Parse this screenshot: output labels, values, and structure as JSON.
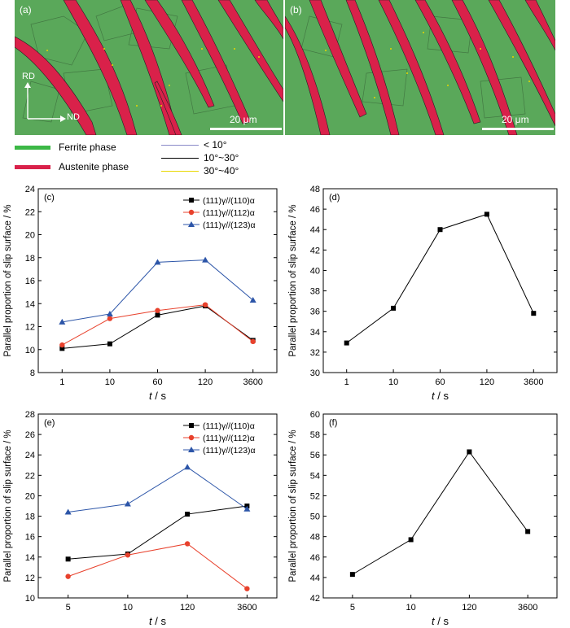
{
  "micrographs": [
    {
      "label": "(a)",
      "scalebar": "20 μm",
      "rd": "RD",
      "nd": "ND"
    },
    {
      "label": "(b)",
      "scalebar": "20 μm"
    }
  ],
  "phase_legend": [
    {
      "label": "Ferrite phase",
      "color": "#3cb846"
    },
    {
      "label": "Austenite phase",
      "color": "#d9214a"
    }
  ],
  "boundary_legend": [
    {
      "label": "< 10°",
      "color": "#8a8ac8"
    },
    {
      "label": "10°~30°",
      "color": "#000000"
    },
    {
      "label": "30°~40°",
      "color": "#e8d800"
    }
  ],
  "chart_data": [
    {
      "panel": "(c)",
      "type": "line",
      "categories": [
        "1",
        "10",
        "60",
        "120",
        "3600"
      ],
      "xlabel": "t / s",
      "ylabel": "Parallel proportion of slip surface / %",
      "ylim": [
        8,
        24
      ],
      "yticks": [
        8,
        10,
        12,
        14,
        16,
        18,
        20,
        22,
        24
      ],
      "legend_position": "top-right",
      "series": [
        {
          "name": "(111)γ//(110)α",
          "color": "#000000",
          "marker": "square",
          "values": [
            10.1,
            10.5,
            13.0,
            13.8,
            10.8
          ]
        },
        {
          "name": "(111)γ//(112)α",
          "color": "#e8412c",
          "marker": "circle",
          "values": [
            10.4,
            12.7,
            13.4,
            13.9,
            10.7
          ]
        },
        {
          "name": "(111)γ//(123)α",
          "color": "#2c55a8",
          "marker": "triangle",
          "values": [
            12.4,
            13.1,
            17.6,
            17.8,
            14.3
          ]
        }
      ]
    },
    {
      "panel": "(d)",
      "type": "line",
      "categories": [
        "1",
        "10",
        "60",
        "120",
        "3600"
      ],
      "xlabel": "t / s",
      "ylabel": "Parallel proportion of slip surface / %",
      "ylim": [
        30,
        48
      ],
      "yticks": [
        30,
        32,
        34,
        36,
        38,
        40,
        42,
        44,
        46,
        48
      ],
      "series": [
        {
          "color": "#000000",
          "marker": "square",
          "values": [
            32.9,
            36.3,
            44.0,
            45.5,
            35.8
          ]
        }
      ]
    },
    {
      "panel": "(e)",
      "type": "line",
      "categories": [
        "5",
        "10",
        "120",
        "3600"
      ],
      "xlabel": "t / s",
      "ylabel": "Parallel proportion of slip surface / %",
      "ylim": [
        10,
        28
      ],
      "yticks": [
        10,
        12,
        14,
        16,
        18,
        20,
        22,
        24,
        26,
        28
      ],
      "legend_position": "top-right",
      "series": [
        {
          "name": "(111)γ//(110)α",
          "color": "#000000",
          "marker": "square",
          "values": [
            13.8,
            14.3,
            18.2,
            19.0
          ]
        },
        {
          "name": "(111)γ//(112)α",
          "color": "#e8412c",
          "marker": "circle",
          "values": [
            12.1,
            14.2,
            15.3,
            10.9
          ]
        },
        {
          "name": "(111)γ//(123)α",
          "color": "#2c55a8",
          "marker": "triangle",
          "values": [
            18.4,
            19.2,
            22.8,
            18.7
          ]
        }
      ]
    },
    {
      "panel": "(f)",
      "type": "line",
      "categories": [
        "5",
        "10",
        "120",
        "3600"
      ],
      "xlabel": "t / s",
      "ylabel": "Parallel proportion of slip surface / %",
      "ylim": [
        42,
        60
      ],
      "yticks": [
        42,
        44,
        46,
        48,
        50,
        52,
        54,
        56,
        58,
        60
      ],
      "series": [
        {
          "color": "#000000",
          "marker": "square",
          "values": [
            44.3,
            47.7,
            56.3,
            48.5
          ]
        }
      ]
    }
  ]
}
